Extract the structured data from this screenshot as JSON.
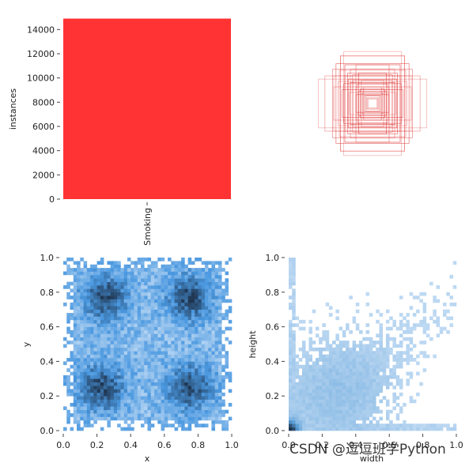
{
  "chart_data": [
    {
      "type": "bar",
      "panel": "top-left",
      "categories": [
        "Smoking"
      ],
      "values": [
        14900
      ],
      "color": "#ff3333",
      "xlabel": "",
      "ylabel": "instances",
      "ylim": [
        0,
        15000
      ],
      "yticks": [
        0,
        2000,
        4000,
        6000,
        8000,
        10000,
        12000,
        14000
      ],
      "grid": false,
      "legend": "none"
    },
    {
      "type": "scatter",
      "panel": "top-right",
      "description_of_marks": "overlay of bounding box outlines centered on image",
      "color": "#e03030",
      "boxes_wh": [
        [
          0.98,
          0.44
        ],
        [
          0.86,
          0.5
        ],
        [
          0.72,
          0.62
        ],
        [
          0.66,
          0.72
        ],
        [
          0.58,
          0.86
        ],
        [
          0.52,
          0.94
        ],
        [
          0.6,
          0.6
        ],
        [
          0.5,
          0.5
        ],
        [
          0.45,
          0.55
        ],
        [
          0.4,
          0.38
        ],
        [
          0.35,
          0.42
        ],
        [
          0.3,
          0.3
        ],
        [
          0.28,
          0.35
        ],
        [
          0.25,
          0.22
        ],
        [
          0.22,
          0.26
        ],
        [
          0.2,
          0.18
        ],
        [
          0.18,
          0.2
        ],
        [
          0.15,
          0.15
        ],
        [
          0.12,
          0.14
        ],
        [
          0.1,
          0.1
        ],
        [
          0.08,
          0.08
        ],
        [
          0.7,
          0.3
        ],
        [
          0.3,
          0.7
        ],
        [
          0.55,
          0.25
        ],
        [
          0.25,
          0.55
        ],
        [
          0.42,
          0.2
        ],
        [
          0.2,
          0.42
        ],
        [
          0.36,
          0.52
        ],
        [
          0.52,
          0.36
        ],
        [
          0.44,
          0.44
        ],
        [
          0.62,
          0.4
        ],
        [
          0.4,
          0.62
        ],
        [
          0.16,
          0.3
        ],
        [
          0.3,
          0.16
        ],
        [
          0.5,
          0.7
        ],
        [
          0.7,
          0.5
        ]
      ],
      "xlim": [
        0,
        1
      ],
      "ylim": [
        0,
        1
      ],
      "grid": false,
      "legend": "none"
    },
    {
      "type": "heatmap",
      "panel": "bottom-left",
      "xlabel": "x",
      "ylabel": "y",
      "xlim": [
        0,
        1
      ],
      "ylim": [
        0,
        1
      ],
      "xticks": [
        0.0,
        0.2,
        0.4,
        0.6,
        0.8,
        1.0
      ],
      "yticks": [
        0.0,
        0.2,
        0.4,
        0.6,
        0.8,
        1.0
      ],
      "bins": 50,
      "clusters": [
        [
          0.23,
          0.25
        ],
        [
          0.75,
          0.25
        ],
        [
          0.25,
          0.77
        ],
        [
          0.75,
          0.77
        ]
      ],
      "color_low": "#cfe3f7",
      "color_high": "#1f3550",
      "grid": false,
      "legend": "none"
    },
    {
      "type": "heatmap",
      "panel": "bottom-right",
      "xlabel": "width",
      "ylabel": "height",
      "xlim": [
        0,
        1
      ],
      "ylim": [
        0,
        1
      ],
      "xticks": [
        0.0,
        0.2,
        0.4,
        0.6,
        0.8,
        1.0
      ],
      "yticks": [
        0.0,
        0.2,
        0.4,
        0.6,
        0.8,
        1.0
      ],
      "bins": 50,
      "peak": [
        0.03,
        0.03
      ],
      "color_low": "#cfe3f7",
      "color_high": "#1f3550",
      "grid": false,
      "legend": "none"
    }
  ],
  "watermark": "CSDN @逗逗班学Python"
}
